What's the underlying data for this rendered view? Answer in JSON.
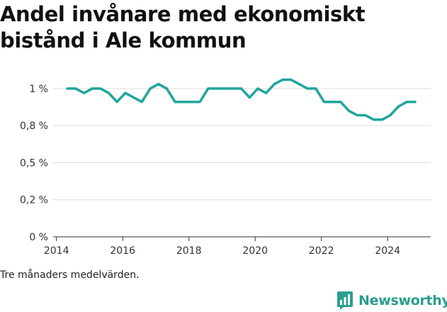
{
  "title": "Andel invånare med ekonomiskt bistånd i Ale kommun",
  "footnote": "Tre månaders medelvärden.",
  "brand": {
    "name": "Newsworthy",
    "icon": "bar-chart-icon",
    "color": "#2a9d8f"
  },
  "colors": {
    "line": "#20a59c",
    "grid": "#dddddd",
    "axis": "#333333"
  },
  "chart_data": {
    "type": "line",
    "title": "Andel invånare med ekonomiskt bistånd i Ale kommun",
    "xlabel": "",
    "ylabel": "",
    "xlim": [
      2013.9,
      2025.3
    ],
    "ylim": [
      0,
      1.1
    ],
    "yticks": [
      {
        "value": 0,
        "label": "0 %"
      },
      {
        "value": 0.25,
        "label": "0,2 %"
      },
      {
        "value": 0.5,
        "label": "0,5 %"
      },
      {
        "value": 0.75,
        "label": "0,8 %"
      },
      {
        "value": 1.0,
        "label": "1 %"
      }
    ],
    "xticks": [
      {
        "value": 2014,
        "label": "2014"
      },
      {
        "value": 2016,
        "label": "2016"
      },
      {
        "value": 2018,
        "label": "2018"
      },
      {
        "value": 2020,
        "label": "2020"
      },
      {
        "value": 2022,
        "label": "2022"
      },
      {
        "value": 2024,
        "label": "2024"
      }
    ],
    "grid": true,
    "series": [
      {
        "name": "",
        "x": [
          2014.33,
          2014.58,
          2014.83,
          2015.08,
          2015.33,
          2015.58,
          2015.83,
          2016.08,
          2016.33,
          2016.58,
          2016.83,
          2017.08,
          2017.33,
          2017.58,
          2017.83,
          2018.08,
          2018.33,
          2018.58,
          2018.83,
          2019.08,
          2019.33,
          2019.58,
          2019.83,
          2020.08,
          2020.33,
          2020.58,
          2020.83,
          2021.08,
          2021.33,
          2021.58,
          2021.83,
          2022.08,
          2022.33,
          2022.58,
          2022.83,
          2023.08,
          2023.33,
          2023.58,
          2023.83,
          2024.08,
          2024.33,
          2024.58,
          2024.83
        ],
        "y": [
          1.0,
          1.0,
          0.97,
          1.0,
          1.0,
          0.97,
          0.91,
          0.97,
          0.94,
          0.91,
          1.0,
          1.03,
          1.0,
          0.91,
          0.91,
          0.91,
          0.91,
          1.0,
          1.0,
          1.0,
          1.0,
          1.0,
          0.94,
          1.0,
          0.97,
          1.03,
          1.06,
          1.06,
          1.03,
          1.0,
          1.0,
          0.91,
          0.91,
          0.91,
          0.85,
          0.82,
          0.82,
          0.79,
          0.79,
          0.82,
          0.88,
          0.91,
          0.91
        ]
      }
    ]
  }
}
